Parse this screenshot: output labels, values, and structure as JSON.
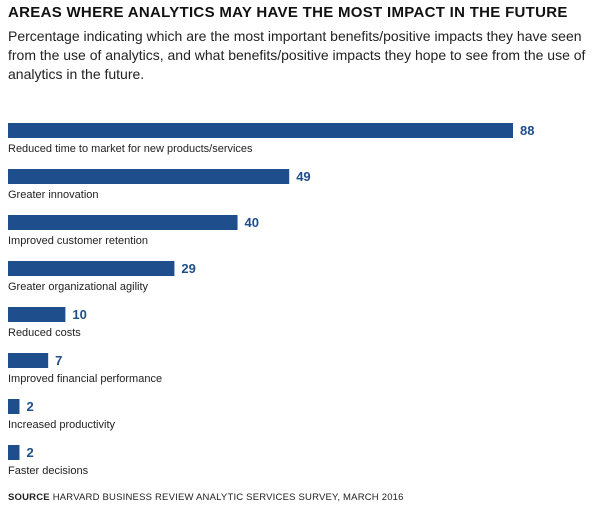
{
  "chart_data": {
    "type": "bar",
    "orientation": "horizontal",
    "title": "AREAS WHERE ANALYTICS MAY HAVE THE MOST IMPACT IN THE FUTURE",
    "subtitle": "Percentage indicating which are the most important benefits/positive impacts they have seen from the use of analytics, and what benefits/positive impacts they hope to see from the use of analytics in the future.",
    "categories": [
      "Reduced time to market for new products/services",
      "Greater innovation",
      "Improved customer retention",
      "Greater organizational agility",
      "Reduced costs",
      "Improved financial performance",
      "Increased productivity",
      "Faster decisions"
    ],
    "values": [
      88,
      49,
      40,
      29,
      10,
      7,
      2,
      2
    ],
    "xlim": [
      0,
      88
    ],
    "grid": false,
    "bar_color": "#1f4e8c"
  },
  "source": {
    "label": "SOURCE",
    "text": "HARVARD BUSINESS REVIEW ANALYTIC SERVICES SURVEY, MARCH 2016"
  }
}
